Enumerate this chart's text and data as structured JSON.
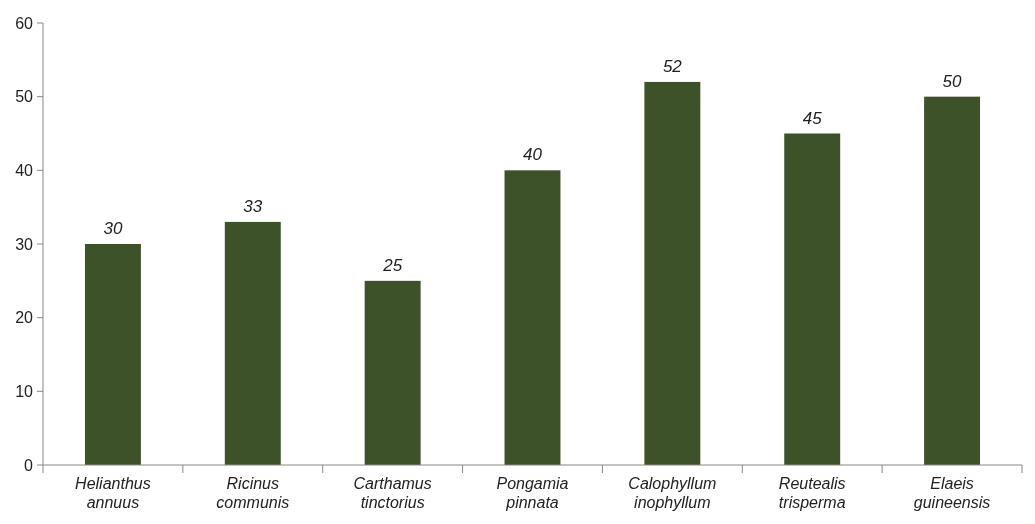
{
  "chart_data": {
    "type": "bar",
    "categories": [
      "Helianthus annuus",
      "Ricinus communis",
      "Carthamus tinctorius",
      "Pongamia pinnata",
      "Calophyllum inophyllum",
      "Reutealis trisperma",
      "Elaeis guineensis"
    ],
    "values": [
      30,
      33,
      25,
      40,
      52,
      45,
      50
    ],
    "color": "#3d5229",
    "ylim": [
      0,
      60
    ],
    "yticks": [
      0,
      10,
      20,
      30,
      40,
      50,
      60
    ],
    "data_labels": true,
    "grid": false
  }
}
